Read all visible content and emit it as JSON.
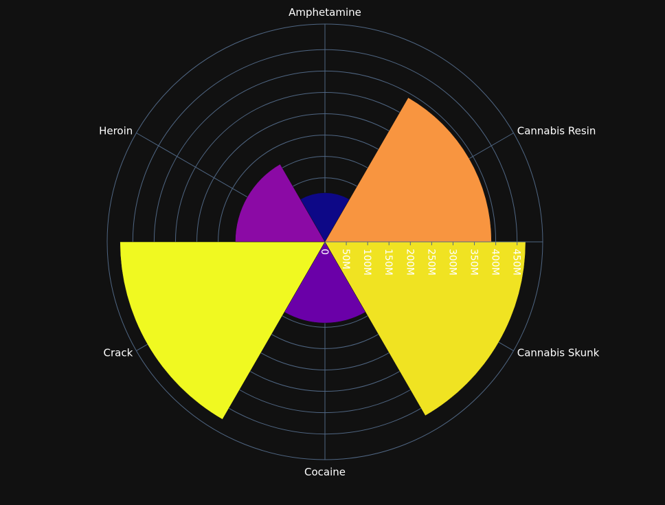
{
  "chart_data": {
    "type": "polar-bar",
    "title": "",
    "categories": [
      "Amphetamine",
      "Cannabis Resin",
      "Cannabis Skunk",
      "Cocaine",
      "Crack",
      "Heroin"
    ],
    "series": [
      {
        "values": [
          115000000,
          390000000,
          470000000,
          190000000,
          480000000,
          210000000
        ],
        "colors": [
          "#0d0887",
          "#f89540",
          "#f0e322",
          "#6a00a8",
          "#f0f921",
          "#8b0aa5"
        ]
      }
    ],
    "radial_axis": {
      "range": [
        0,
        510000000
      ],
      "ticks": [
        0,
        50000000,
        100000000,
        150000000,
        200000000,
        250000000,
        300000000,
        350000000,
        400000000,
        450000000
      ],
      "tick_labels": [
        "0",
        "50M",
        "100M",
        "150M",
        "200M",
        "250M",
        "300M",
        "350M",
        "400M",
        "450M"
      ]
    },
    "angular_axis": {
      "direction": "clockwise",
      "rotation": 90,
      "grid": true
    },
    "background": "#111111",
    "grid_color": "#506784"
  }
}
